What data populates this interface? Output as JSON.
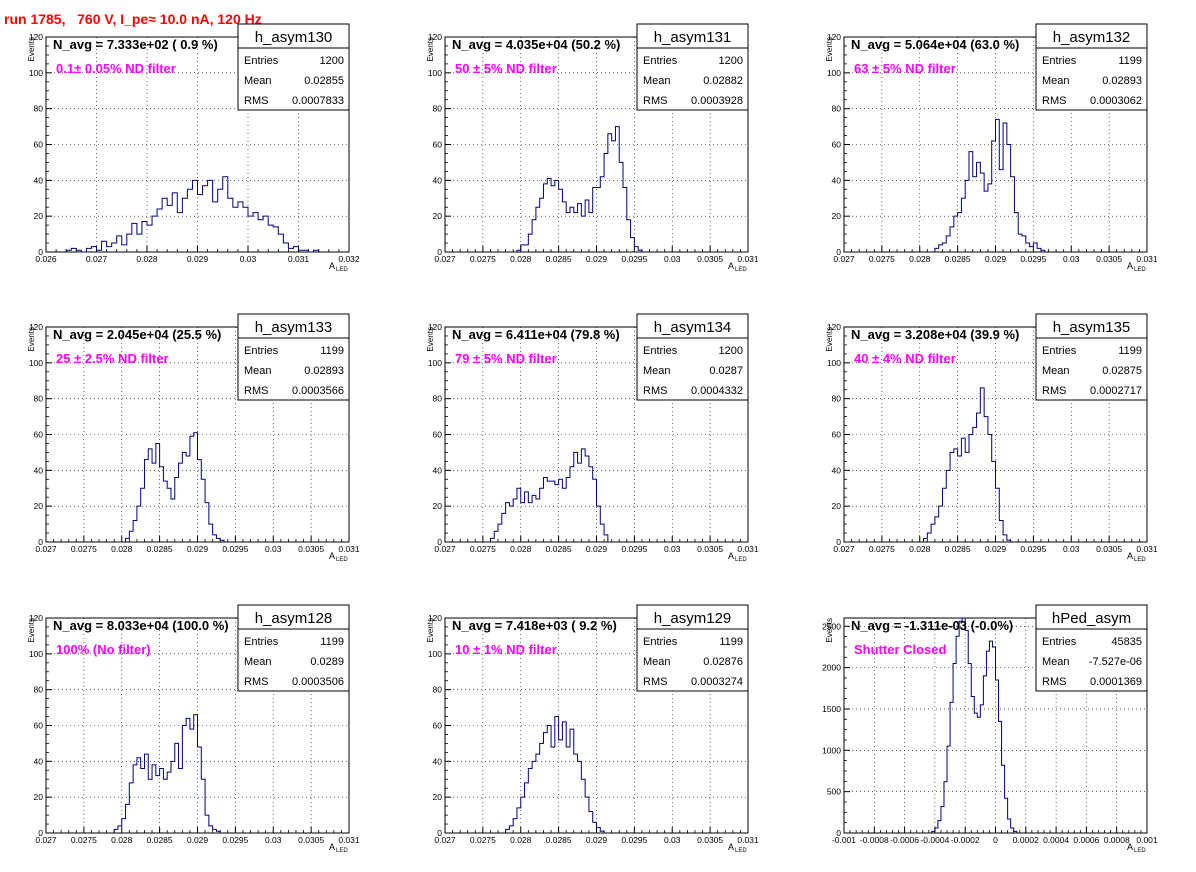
{
  "page_title": "run 1785,   760 V, I_pe≈ 10.0 nA, 120 Hz",
  "y_axis_label": "Events",
  "x_axis_label_main": "A",
  "x_axis_label_sub": "LED",
  "stats_labels": [
    "Entries",
    "Mean",
    "RMS"
  ],
  "chart_data": [
    {
      "type": "bar",
      "name": "h_asym130",
      "navg": "N_avg = 7.333e+02 ( 0.9 %)",
      "filter": "0.1± 0.05% ND filter",
      "entries": "1200",
      "mean": "0.02855",
      "rms": "0.0007833",
      "xlim": [
        0.026,
        0.032
      ],
      "ylim": [
        0,
        120
      ],
      "xticks": [
        0.026,
        0.027,
        0.028,
        0.029,
        0.03,
        0.031,
        0.032
      ],
      "xtick_labels": [
        "0.026",
        "0.027",
        "0.028",
        "0.029",
        "0.03",
        "0.031",
        "0.032"
      ],
      "yticks": [
        0,
        20,
        40,
        60,
        80,
        100,
        120
      ],
      "yticks_labels": [
        "0",
        "20",
        "40",
        "60",
        "80",
        "100",
        "120"
      ],
      "bin_start": 0.0264,
      "bin_width": 0.0001,
      "values": [
        1,
        2,
        1,
        0,
        2,
        3,
        1,
        6,
        3,
        5,
        9,
        4,
        10,
        16,
        10,
        17,
        15,
        20,
        24,
        30,
        26,
        33,
        22,
        30,
        35,
        40,
        32,
        37,
        40,
        28,
        35,
        42,
        30,
        25,
        28,
        25,
        20,
        22,
        18,
        20,
        15,
        14,
        10,
        5,
        2,
        3,
        1,
        1,
        0,
        1
      ]
    },
    {
      "type": "bar",
      "name": "h_asym131",
      "navg": "N_avg = 4.035e+04 (50.2 %)",
      "filter": "50 ± 5% ND filter",
      "entries": "1200",
      "mean": "0.02882",
      "rms": "0.0003928",
      "xlim": [
        0.027,
        0.031
      ],
      "ylim": [
        0,
        120
      ],
      "xticks": [
        0.027,
        0.0275,
        0.028,
        0.0285,
        0.029,
        0.0295,
        0.03,
        0.0305,
        0.031
      ],
      "xtick_labels": [
        "0.027",
        "0.0275",
        "0.028",
        "0.0285",
        "0.029",
        "0.0295",
        "0.03",
        "0.0305",
        "0.031"
      ],
      "yticks": [
        0,
        20,
        40,
        60,
        80,
        100,
        120
      ],
      "yticks_labels": [
        "0",
        "20",
        "40",
        "60",
        "80",
        "100",
        "120"
      ],
      "bin_start": 0.02795,
      "bin_width": 5e-05,
      "values": [
        1,
        4,
        4,
        10,
        18,
        25,
        30,
        38,
        41,
        37,
        40,
        35,
        28,
        22,
        25,
        22,
        27,
        20,
        29,
        22,
        36,
        36,
        42,
        55,
        66,
        62,
        70,
        50,
        36,
        18,
        8,
        3,
        1
      ]
    },
    {
      "type": "bar",
      "name": "h_asym132",
      "navg": "N_avg = 5.064e+04 (63.0 %)",
      "filter": "63 ± 5% ND filter",
      "entries": "1199",
      "mean": "0.02893",
      "rms": "0.0003062",
      "xlim": [
        0.027,
        0.031
      ],
      "ylim": [
        0,
        120
      ],
      "xticks": [
        0.027,
        0.0275,
        0.028,
        0.0285,
        0.029,
        0.0295,
        0.03,
        0.0305,
        0.031
      ],
      "xtick_labels": [
        "0.027",
        "0.0275",
        "0.028",
        "0.0285",
        "0.029",
        "0.0295",
        "0.03",
        "0.0305",
        "0.031"
      ],
      "yticks": [
        0,
        20,
        40,
        60,
        80,
        100,
        120
      ],
      "yticks_labels": [
        "0",
        "20",
        "40",
        "60",
        "80",
        "100",
        "120"
      ],
      "bin_start": 0.0282,
      "bin_width": 5e-05,
      "values": [
        2,
        4,
        5,
        9,
        14,
        20,
        22,
        30,
        40,
        56,
        42,
        50,
        44,
        34,
        38,
        62,
        74,
        46,
        72,
        60,
        42,
        22,
        10,
        9,
        5,
        3,
        5,
        2,
        1
      ]
    },
    {
      "type": "bar",
      "name": "h_asym133",
      "navg": "N_avg = 2.045e+04 (25.5 %)",
      "filter": "25 ± 2.5% ND filter",
      "entries": "1199",
      "mean": "0.02893",
      "rms": "0.0003566",
      "xlim": [
        0.027,
        0.031
      ],
      "ylim": [
        0,
        120
      ],
      "xticks": [
        0.027,
        0.0275,
        0.028,
        0.0285,
        0.029,
        0.0295,
        0.03,
        0.0305,
        0.031
      ],
      "xtick_labels": [
        "0.027",
        "0.0275",
        "0.028",
        "0.0285",
        "0.029",
        "0.0295",
        "0.03",
        "0.0305",
        "0.031"
      ],
      "yticks": [
        0,
        20,
        40,
        60,
        80,
        100,
        120
      ],
      "yticks_labels": [
        "0",
        "20",
        "40",
        "60",
        "80",
        "100",
        "120"
      ],
      "bin_start": 0.02805,
      "bin_width": 5e-05,
      "values": [
        2,
        6,
        12,
        20,
        30,
        46,
        52,
        44,
        55,
        42,
        34,
        30,
        24,
        36,
        44,
        50,
        48,
        59,
        61,
        46,
        35,
        22,
        10,
        4,
        2,
        1
      ]
    },
    {
      "type": "bar",
      "name": "h_asym134",
      "navg": "N_avg = 6.411e+04 (79.8 %)",
      "filter": "79 ± 5% ND filter",
      "entries": "1200",
      "mean": "0.0287",
      "rms": "0.0004332",
      "xlim": [
        0.027,
        0.031
      ],
      "ylim": [
        0,
        120
      ],
      "xticks": [
        0.027,
        0.0275,
        0.028,
        0.0285,
        0.029,
        0.0295,
        0.03,
        0.0305,
        0.031
      ],
      "xtick_labels": [
        "0.027",
        "0.0275",
        "0.028",
        "0.0285",
        "0.029",
        "0.0295",
        "0.03",
        "0.0305",
        "0.031"
      ],
      "yticks": [
        0,
        20,
        40,
        60,
        80,
        100,
        120
      ],
      "yticks_labels": [
        "0",
        "20",
        "40",
        "60",
        "80",
        "100",
        "120"
      ],
      "bin_start": 0.0276,
      "bin_width": 5e-05,
      "values": [
        2,
        6,
        10,
        16,
        22,
        20,
        24,
        30,
        22,
        28,
        22,
        26,
        24,
        30,
        36,
        34,
        34,
        32,
        35,
        30,
        36,
        42,
        50,
        44,
        52,
        48,
        42,
        35,
        20,
        10,
        4
      ]
    },
    {
      "type": "bar",
      "name": "h_asym135",
      "navg": "N_avg = 3.208e+04 (39.9 %)",
      "filter": "40 ± 4% ND filter",
      "entries": "1199",
      "mean": "0.02875",
      "rms": "0.0002717",
      "xlim": [
        0.027,
        0.031
      ],
      "ylim": [
        0,
        120
      ],
      "xticks": [
        0.027,
        0.0275,
        0.028,
        0.0285,
        0.029,
        0.0295,
        0.03,
        0.0305,
        0.031
      ],
      "xtick_labels": [
        "0.027",
        "0.0275",
        "0.028",
        "0.0285",
        "0.029",
        "0.0295",
        "0.03",
        "0.0305",
        "0.031"
      ],
      "yticks": [
        0,
        20,
        40,
        60,
        80,
        100,
        120
      ],
      "yticks_labels": [
        "0",
        "20",
        "40",
        "60",
        "80",
        "100",
        "120"
      ],
      "bin_start": 0.02805,
      "bin_width": 5e-05,
      "values": [
        2,
        5,
        10,
        14,
        20,
        30,
        40,
        50,
        52,
        48,
        58,
        50,
        60,
        64,
        72,
        86,
        70,
        60,
        45,
        30,
        12,
        4,
        1
      ]
    },
    {
      "type": "bar",
      "name": "h_asym128",
      "navg": "N_avg = 8.033e+04 (100.0 %)",
      "filter": "100% (No filter)",
      "entries": "1199",
      "mean": "0.0289",
      "rms": "0.0003506",
      "xlim": [
        0.027,
        0.031
      ],
      "ylim": [
        0,
        120
      ],
      "xticks": [
        0.027,
        0.0275,
        0.028,
        0.0285,
        0.029,
        0.0295,
        0.03,
        0.0305,
        0.031
      ],
      "xtick_labels": [
        "0.027",
        "0.0275",
        "0.028",
        "0.0285",
        "0.029",
        "0.0295",
        "0.03",
        "0.0305",
        "0.031"
      ],
      "yticks": [
        0,
        20,
        40,
        60,
        80,
        100,
        120
      ],
      "yticks_labels": [
        "0",
        "20",
        "40",
        "60",
        "80",
        "100",
        "120"
      ],
      "bin_start": 0.0279,
      "bin_width": 5e-05,
      "values": [
        2,
        4,
        8,
        16,
        28,
        38,
        42,
        36,
        44,
        30,
        38,
        32,
        36,
        30,
        34,
        40,
        50,
        36,
        60,
        64,
        58,
        66,
        48,
        30,
        10,
        4,
        2,
        1
      ]
    },
    {
      "type": "bar",
      "name": "h_asym129",
      "navg": "N_avg = 7.418e+03 ( 9.2 %)",
      "filter": "10 ± 1% ND filter",
      "entries": "1199",
      "mean": "0.02876",
      "rms": "0.0003274",
      "xlim": [
        0.027,
        0.031
      ],
      "ylim": [
        0,
        120
      ],
      "xticks": [
        0.027,
        0.0275,
        0.028,
        0.0285,
        0.029,
        0.0295,
        0.03,
        0.0305,
        0.031
      ],
      "xtick_labels": [
        "0.027",
        "0.0275",
        "0.028",
        "0.0285",
        "0.029",
        "0.0295",
        "0.03",
        "0.0305",
        "0.031"
      ],
      "yticks": [
        0,
        20,
        40,
        60,
        80,
        100,
        120
      ],
      "yticks_labels": [
        "0",
        "20",
        "40",
        "60",
        "80",
        "100",
        "120"
      ],
      "bin_start": 0.0278,
      "bin_width": 5e-05,
      "values": [
        2,
        4,
        8,
        14,
        20,
        28,
        36,
        40,
        44,
        50,
        56,
        60,
        48,
        65,
        52,
        62,
        48,
        58,
        44,
        40,
        30,
        20,
        12,
        6,
        3,
        1
      ]
    },
    {
      "type": "bar",
      "name": "hPed_asym",
      "navg": "N_avg = -1.311e-03 (-0.0%)",
      "filter": "Shutter Closed",
      "entries": "45835",
      "mean": "-7.527e-06",
      "rms": "0.0001369",
      "xlim": [
        -0.001,
        0.001
      ],
      "ylim": [
        0,
        2600
      ],
      "xticks": [
        -0.001,
        -0.0008,
        -0.0006,
        -0.0004,
        -0.0002,
        0,
        0.0002,
        0.0004,
        0.0006,
        0.0008,
        0.001
      ],
      "xtick_labels": [
        "-0.001",
        "-0.0008",
        "-0.0006",
        "-0.0004",
        "-0.0002",
        "0",
        "0.0002",
        "0.0004",
        "0.0006",
        "0.0008",
        "0.001"
      ],
      "yticks": [
        0,
        500,
        1000,
        1500,
        2000,
        2500
      ],
      "yticks_labels": [
        "0",
        "500",
        "1000",
        "1500",
        "2000",
        "2500"
      ],
      "bin_start": -0.00042,
      "bin_width": 2e-05,
      "values": [
        20,
        60,
        150,
        320,
        620,
        1050,
        1580,
        2050,
        2380,
        2560,
        2600,
        2450,
        2050,
        1650,
        1450,
        1400,
        1550,
        1900,
        2200,
        2320,
        2250,
        1850,
        1350,
        820,
        420,
        170,
        60,
        20
      ]
    }
  ]
}
